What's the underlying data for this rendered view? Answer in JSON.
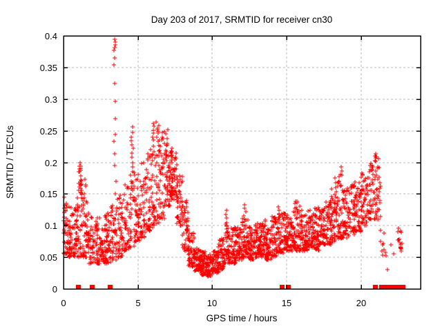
{
  "title": "Day 203 of 2017, SRMTID for receiver cn30",
  "chart_data": {
    "type": "scatter",
    "title": "Day 203 of 2017, SRMTID for receiver cn30",
    "xlabel": "GPS time / hours",
    "ylabel": "SRMTID / TECUs",
    "xlim": [
      0,
      24
    ],
    "ylim": [
      0,
      0.4
    ],
    "xticks": [
      0,
      5,
      10,
      15,
      20
    ],
    "xtick_labels": [
      "0",
      "5",
      "10",
      "15",
      "20"
    ],
    "yticks": [
      0,
      0.05,
      0.1,
      0.15,
      0.2,
      0.25,
      0.3,
      0.35,
      0.4
    ],
    "ytick_labels": [
      "0",
      "0.05",
      "0.1",
      "0.15",
      "0.2",
      "0.25",
      "0.3",
      "0.35",
      "0.4"
    ],
    "grid": true,
    "legend_position": "none",
    "marker": "plus-cross",
    "marker_size_px": 7,
    "marker_color": "#ff0000",
    "grid_color": "#b9b9b9",
    "border_color": "#000000",
    "background_color": "#ffffff",
    "text_color": "#000000",
    "seed": 42,
    "bands_format": "[x_start_hours, x_end_hours, n_points, value_min_TECUs, value_max_TECUs, low_bias_exponent]",
    "density_bands": [
      [
        0.0,
        0.3,
        40,
        0.055,
        0.145,
        1.3
      ],
      [
        0.3,
        0.7,
        45,
        0.05,
        0.13,
        1.5
      ],
      [
        0.7,
        1.0,
        40,
        0.05,
        0.145,
        1.5
      ],
      [
        1.0,
        1.3,
        45,
        0.05,
        0.2,
        1.8
      ],
      [
        1.3,
        1.6,
        40,
        0.05,
        0.185,
        1.9
      ],
      [
        1.6,
        2.0,
        45,
        0.04,
        0.12,
        1.5
      ],
      [
        2.0,
        2.4,
        45,
        0.04,
        0.115,
        1.5
      ],
      [
        2.4,
        2.8,
        45,
        0.04,
        0.105,
        1.4
      ],
      [
        2.8,
        3.2,
        50,
        0.04,
        0.12,
        1.5
      ],
      [
        3.2,
        3.6,
        45,
        0.045,
        0.135,
        1.4
      ],
      [
        3.6,
        4.0,
        45,
        0.05,
        0.15,
        1.6
      ],
      [
        4.0,
        4.4,
        40,
        0.06,
        0.165,
        1.5
      ],
      [
        4.4,
        4.8,
        40,
        0.065,
        0.185,
        1.4
      ],
      [
        4.8,
        5.2,
        45,
        0.075,
        0.185,
        1.4
      ],
      [
        5.2,
        5.6,
        45,
        0.08,
        0.2,
        1.5
      ],
      [
        5.6,
        6.0,
        48,
        0.09,
        0.22,
        1.5
      ],
      [
        6.0,
        6.4,
        50,
        0.1,
        0.265,
        1.5
      ],
      [
        6.4,
        6.8,
        50,
        0.11,
        0.25,
        1.4
      ],
      [
        6.8,
        7.2,
        52,
        0.13,
        0.235,
        1.3
      ],
      [
        7.2,
        7.6,
        52,
        0.14,
        0.22,
        1.2
      ],
      [
        7.6,
        8.0,
        48,
        0.1,
        0.18,
        1.3
      ],
      [
        8.0,
        8.4,
        50,
        0.06,
        0.14,
        1.4
      ],
      [
        8.4,
        8.8,
        52,
        0.035,
        0.09,
        1.4
      ],
      [
        8.8,
        9.2,
        55,
        0.028,
        0.065,
        1.3
      ],
      [
        9.2,
        9.6,
        58,
        0.022,
        0.06,
        1.3
      ],
      [
        9.6,
        10.0,
        58,
        0.02,
        0.055,
        1.2
      ],
      [
        10.0,
        10.4,
        55,
        0.025,
        0.06,
        1.2
      ],
      [
        10.4,
        10.8,
        50,
        0.03,
        0.08,
        1.4
      ],
      [
        10.8,
        11.2,
        50,
        0.04,
        0.105,
        1.6
      ],
      [
        11.2,
        11.6,
        52,
        0.04,
        0.1,
        1.5
      ],
      [
        11.6,
        12.0,
        52,
        0.045,
        0.1,
        1.5
      ],
      [
        12.0,
        12.4,
        52,
        0.05,
        0.115,
        1.5
      ],
      [
        12.4,
        12.8,
        52,
        0.045,
        0.1,
        1.4
      ],
      [
        12.8,
        13.2,
        52,
        0.05,
        0.105,
        1.4
      ],
      [
        13.2,
        13.6,
        50,
        0.05,
        0.11,
        1.5
      ],
      [
        13.6,
        14.0,
        50,
        0.045,
        0.1,
        1.4
      ],
      [
        14.0,
        14.4,
        48,
        0.05,
        0.115,
        1.5
      ],
      [
        14.4,
        14.8,
        48,
        0.055,
        0.12,
        1.5
      ],
      [
        14.8,
        15.2,
        48,
        0.06,
        0.12,
        1.4
      ],
      [
        15.2,
        15.6,
        50,
        0.06,
        0.125,
        1.4
      ],
      [
        15.6,
        16.0,
        50,
        0.06,
        0.14,
        1.5
      ],
      [
        16.0,
        16.4,
        50,
        0.06,
        0.12,
        1.4
      ],
      [
        16.4,
        16.8,
        50,
        0.065,
        0.125,
        1.4
      ],
      [
        16.8,
        17.2,
        48,
        0.06,
        0.13,
        1.4
      ],
      [
        17.2,
        17.6,
        48,
        0.07,
        0.135,
        1.4
      ],
      [
        17.6,
        18.0,
        48,
        0.07,
        0.14,
        1.4
      ],
      [
        18.0,
        18.4,
        46,
        0.075,
        0.16,
        1.5
      ],
      [
        18.4,
        18.8,
        46,
        0.08,
        0.185,
        1.5
      ],
      [
        18.8,
        19.2,
        46,
        0.08,
        0.16,
        1.4
      ],
      [
        19.2,
        19.6,
        46,
        0.085,
        0.165,
        1.4
      ],
      [
        19.6,
        20.0,
        44,
        0.09,
        0.17,
        1.4
      ],
      [
        20.0,
        20.4,
        44,
        0.1,
        0.185,
        1.3
      ],
      [
        20.4,
        20.8,
        42,
        0.11,
        0.205,
        1.2
      ],
      [
        20.8,
        21.3,
        42,
        0.11,
        0.214,
        1.2
      ],
      [
        21.3,
        21.6,
        8,
        0.04,
        0.1,
        1.3
      ],
      [
        21.6,
        22.2,
        5,
        0.03,
        0.07,
        1.2
      ],
      [
        22.45,
        22.75,
        16,
        0.055,
        0.097,
        1.0
      ]
    ],
    "feature_columns": [
      {
        "x": 3.45,
        "spread": 0.06,
        "values": [
          0.395,
          0.39,
          0.386,
          0.382,
          0.377,
          0.365,
          0.354,
          0.325,
          0.297,
          0.269,
          0.244,
          0.233,
          0.214,
          0.195,
          0.17,
          0.15
        ]
      },
      {
        "x": 4.62,
        "spread": 0.08,
        "values": [
          0.256,
          0.247,
          0.24,
          0.234,
          0.228,
          0.222,
          0.215,
          0.208,
          0.2,
          0.193
        ]
      },
      {
        "x": 1.12,
        "spread": 0.1,
        "values": [
          0.2,
          0.194,
          0.187,
          0.179,
          0.171,
          0.163,
          0.156,
          0.149
        ]
      },
      {
        "x": 6.3,
        "spread": 0.12,
        "values": [
          0.264,
          0.258,
          0.252,
          0.246,
          0.24,
          0.233
        ]
      },
      {
        "x": 6.9,
        "spread": 0.1,
        "values": [
          0.252,
          0.245,
          0.238,
          0.23
        ]
      },
      {
        "x": 7.25,
        "spread": 0.12,
        "values": [
          0.222,
          0.216,
          0.21
        ]
      },
      {
        "x": 11.0,
        "spread": 0.08,
        "values": [
          0.124,
          0.118,
          0.112,
          0.105
        ]
      },
      {
        "x": 12.2,
        "spread": 0.1,
        "values": [
          0.133,
          0.127,
          0.122,
          0.115,
          0.11
        ]
      },
      {
        "x": 14.45,
        "spread": 0.08,
        "values": [
          0.13,
          0.124,
          0.118
        ]
      },
      {
        "x": 15.5,
        "spread": 0.08,
        "values": [
          0.135,
          0.128,
          0.122
        ]
      },
      {
        "x": 18.3,
        "spread": 0.08,
        "values": [
          0.175,
          0.168,
          0.16
        ]
      },
      {
        "x": 18.7,
        "spread": 0.08,
        "values": [
          0.193,
          0.186,
          0.18
        ]
      },
      {
        "x": 20.95,
        "spread": 0.15,
        "values": [
          0.214,
          0.21,
          0.207,
          0.203
        ]
      }
    ],
    "zero_value_square_markers_x": [
      0.97,
      1.9,
      3.12,
      14.65,
      15.1,
      20.93,
      21.35,
      21.45,
      21.55,
      21.65,
      21.75,
      21.85,
      21.95,
      22.05,
      22.15,
      22.37,
      22.55,
      22.8
    ]
  }
}
